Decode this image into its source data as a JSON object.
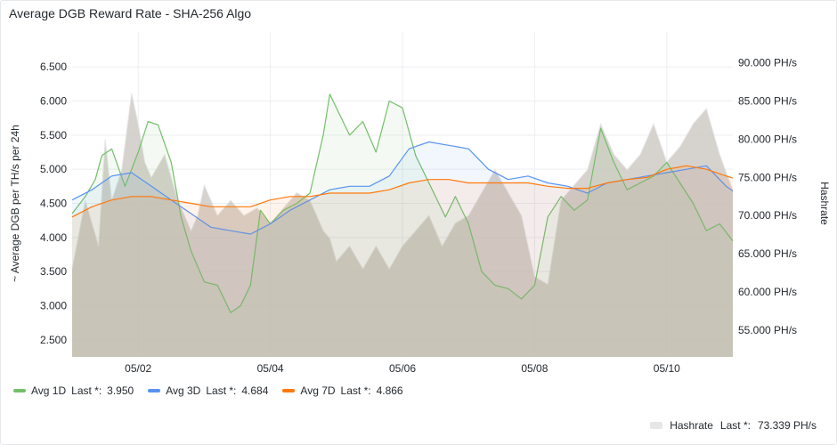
{
  "panel": {
    "title": "Average DGB Reward Rate - SHA-256 Algo"
  },
  "legend": {
    "items": [
      {
        "name": "Avg 1D",
        "last_label": "Last *:",
        "last_value": "3.950",
        "color": "#73bf69"
      },
      {
        "name": "Avg 3D",
        "last_label": "Last *:",
        "last_value": "4.684",
        "color": "#5794f2"
      },
      {
        "name": "Avg 7D",
        "last_label": "Last *:",
        "last_value": "4.866",
        "color": "#ff780a"
      }
    ],
    "hashrate": {
      "name": "Hashrate",
      "last_label": "Last *:",
      "last_value": "73.339 PH/s",
      "color": "#e6e6e6"
    }
  },
  "chart_data": {
    "type": "line",
    "title": "Average DGB Reward Rate - SHA-256 Algo",
    "ylabel": "~ Average DGB per TH/s per 24h",
    "y2label": "Hashrate",
    "x_ticks": [
      "05/02",
      "05/04",
      "05/06",
      "05/08",
      "05/10"
    ],
    "x_range": [
      0,
      10
    ],
    "x_tick_positions": [
      1,
      3,
      5,
      7,
      9
    ],
    "ylim": [
      2.25,
      6.75
    ],
    "y_ticks": [
      "2.500",
      "3.000",
      "3.500",
      "4.000",
      "4.500",
      "5.000",
      "5.500",
      "6.000",
      "6.500"
    ],
    "y2lim": [
      51500,
      91700
    ],
    "y2_ticks": [
      "55.000 PH/s",
      "60.000 PH/s",
      "65.000 PH/s",
      "70.000 PH/s",
      "75.000 PH/s",
      "80.000 PH/s",
      "85.000 PH/s",
      "90.000 PH/s"
    ],
    "grid": true,
    "series": [
      {
        "name": "Avg 1D",
        "axis": "left",
        "color": "#73bf69",
        "x": [
          0,
          0.2,
          0.35,
          0.45,
          0.6,
          0.8,
          1.0,
          1.15,
          1.3,
          1.5,
          1.65,
          1.8,
          2.0,
          2.2,
          2.4,
          2.55,
          2.7,
          2.85,
          3.0,
          3.2,
          3.4,
          3.6,
          3.8,
          3.9,
          4.0,
          4.2,
          4.4,
          4.6,
          4.8,
          5.0,
          5.2,
          5.3,
          5.5,
          5.65,
          5.8,
          6.0,
          6.2,
          6.4,
          6.6,
          6.8,
          7.0,
          7.2,
          7.4,
          7.6,
          7.8,
          8.0,
          8.2,
          8.4,
          8.6,
          8.8,
          9.0,
          9.2,
          9.4,
          9.6,
          9.8,
          10.0
        ],
        "values": [
          4.35,
          4.6,
          4.85,
          5.2,
          5.3,
          4.75,
          5.25,
          5.7,
          5.65,
          5.1,
          4.3,
          3.8,
          3.35,
          3.3,
          2.9,
          3.0,
          3.3,
          4.4,
          4.2,
          4.4,
          4.5,
          4.65,
          5.5,
          6.1,
          5.9,
          5.5,
          5.7,
          5.25,
          6.0,
          5.9,
          5.2,
          5.0,
          4.6,
          4.3,
          4.6,
          4.2,
          3.5,
          3.3,
          3.25,
          3.1,
          3.3,
          4.3,
          4.6,
          4.4,
          4.55,
          5.6,
          5.1,
          4.7,
          4.8,
          4.9,
          5.1,
          4.8,
          4.5,
          4.1,
          4.2,
          3.95
        ]
      },
      {
        "name": "Avg 3D",
        "axis": "left",
        "color": "#5794f2",
        "x": [
          0,
          0.3,
          0.6,
          0.9,
          1.2,
          1.5,
          1.8,
          2.1,
          2.4,
          2.7,
          3.0,
          3.3,
          3.6,
          3.9,
          4.2,
          4.5,
          4.8,
          5.1,
          5.4,
          5.7,
          6.0,
          6.3,
          6.6,
          6.9,
          7.2,
          7.5,
          7.8,
          8.1,
          8.4,
          8.7,
          9.0,
          9.3,
          9.6,
          9.9,
          10.0
        ],
        "values": [
          4.55,
          4.7,
          4.9,
          4.95,
          4.75,
          4.55,
          4.35,
          4.15,
          4.1,
          4.05,
          4.2,
          4.4,
          4.55,
          4.7,
          4.75,
          4.75,
          4.9,
          5.3,
          5.4,
          5.35,
          5.3,
          5.0,
          4.85,
          4.9,
          4.8,
          4.75,
          4.65,
          4.8,
          4.85,
          4.9,
          4.95,
          5.0,
          5.05,
          4.75,
          4.68
        ]
      },
      {
        "name": "Avg 7D",
        "axis": "left",
        "color": "#ff780a",
        "x": [
          0,
          0.3,
          0.6,
          0.9,
          1.2,
          1.5,
          1.8,
          2.1,
          2.4,
          2.7,
          3.0,
          3.3,
          3.6,
          3.9,
          4.2,
          4.5,
          4.8,
          5.1,
          5.4,
          5.7,
          6.0,
          6.3,
          6.6,
          6.9,
          7.2,
          7.5,
          7.8,
          8.1,
          8.4,
          8.7,
          9.0,
          9.3,
          9.6,
          9.9,
          10.0
        ],
        "values": [
          4.3,
          4.45,
          4.55,
          4.6,
          4.6,
          4.55,
          4.5,
          4.45,
          4.45,
          4.45,
          4.55,
          4.6,
          4.6,
          4.65,
          4.65,
          4.65,
          4.7,
          4.8,
          4.85,
          4.85,
          4.8,
          4.8,
          4.8,
          4.8,
          4.75,
          4.72,
          4.72,
          4.8,
          4.85,
          4.88,
          5.0,
          5.05,
          5.0,
          4.9,
          4.87
        ]
      },
      {
        "name": "Hashrate",
        "axis": "right",
        "color": "#e6e6e6",
        "x": [
          0,
          0.2,
          0.4,
          0.5,
          0.6,
          0.75,
          0.9,
          1.0,
          1.1,
          1.2,
          1.4,
          1.6,
          1.8,
          1.9,
          2.0,
          2.2,
          2.4,
          2.6,
          2.8,
          3.0,
          3.2,
          3.4,
          3.6,
          3.8,
          3.9,
          4.0,
          4.2,
          4.4,
          4.6,
          4.8,
          5.0,
          5.2,
          5.4,
          5.6,
          5.8,
          6.0,
          6.2,
          6.4,
          6.6,
          6.8,
          7.0,
          7.2,
          7.4,
          7.6,
          7.8,
          8.0,
          8.2,
          8.4,
          8.6,
          8.8,
          9.0,
          9.2,
          9.4,
          9.6,
          9.8,
          10.0
        ],
        "values": [
          63000,
          72000,
          66000,
          80000,
          72000,
          76000,
          86000,
          82000,
          77000,
          75000,
          78000,
          72000,
          68000,
          70000,
          74000,
          70000,
          72000,
          70000,
          71000,
          69000,
          71000,
          73000,
          72000,
          68000,
          67000,
          64000,
          66000,
          63000,
          66000,
          63000,
          66000,
          68000,
          70000,
          66000,
          69000,
          70000,
          73000,
          76000,
          73000,
          70000,
          62000,
          61000,
          72000,
          74000,
          76000,
          82000,
          78000,
          76000,
          78000,
          82000,
          77000,
          79000,
          82000,
          84000,
          78000,
          73339
        ]
      }
    ]
  }
}
